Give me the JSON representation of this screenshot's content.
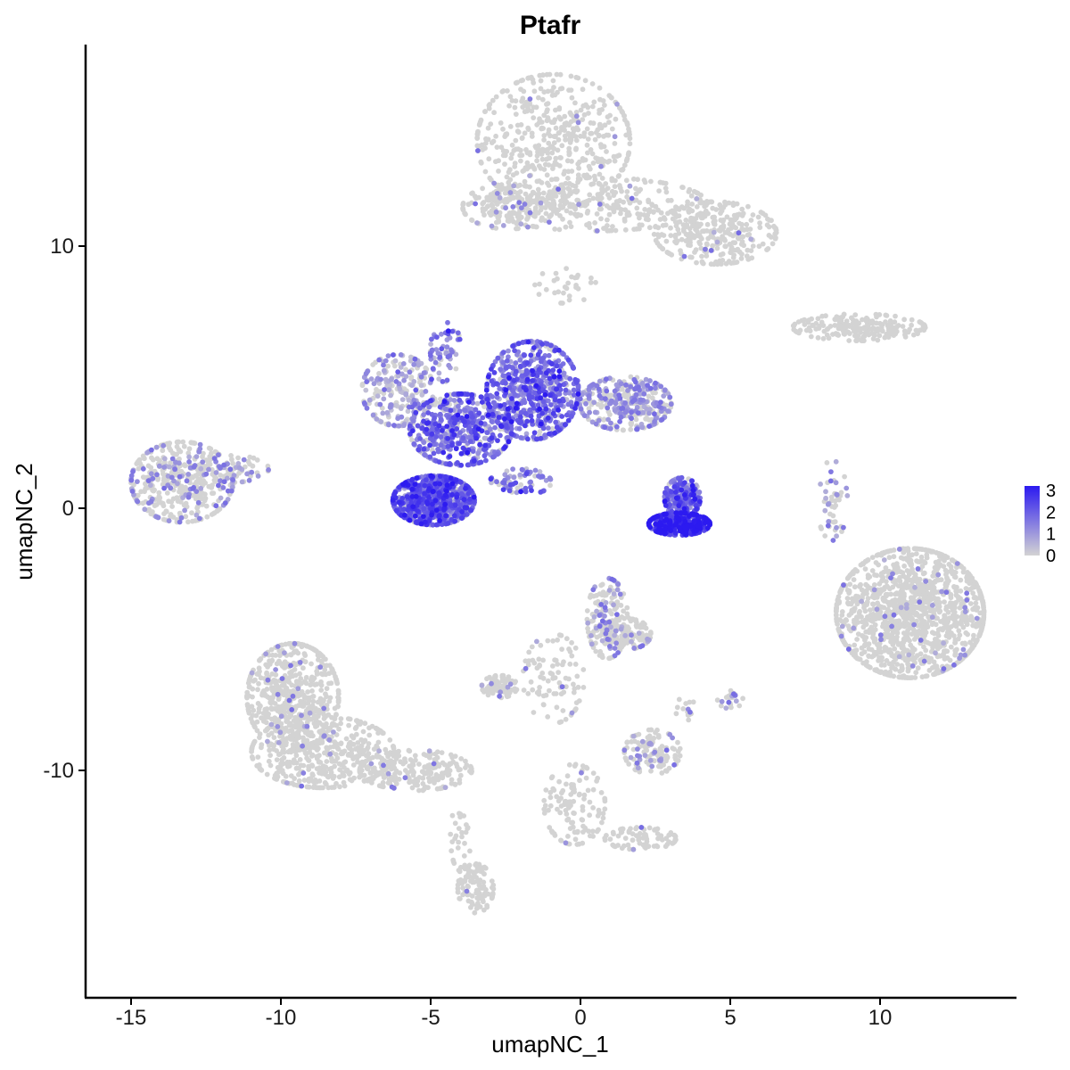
{
  "chart_data": {
    "type": "scatter",
    "title": "Ptafr",
    "xlabel": "umapNC_1",
    "ylabel": "umapNC_2",
    "xlim": [
      -16.5,
      14.5
    ],
    "ylim": [
      -18.5,
      17.5
    ],
    "x_ticks": [
      -15,
      -10,
      -5,
      0,
      5,
      10
    ],
    "y_ticks": [
      -10,
      0,
      10
    ],
    "x_tick_labels": [
      "-15",
      "-10",
      "-5",
      "0",
      "5",
      "10"
    ],
    "y_tick_labels": [
      "-10",
      "0",
      "10"
    ],
    "grid": false,
    "color_scale": {
      "low": "#d3d3d3",
      "high": "#2c1af0",
      "min": 0,
      "max": 3.2
    },
    "legend": {
      "position": "right",
      "labels": [
        "3",
        "2",
        "1",
        "0"
      ],
      "values": [
        3,
        2,
        1,
        0
      ]
    },
    "clusters": [
      {
        "center": [
          -0.9,
          14.0
        ],
        "spread": [
          1.5,
          1.5
        ],
        "n": 500,
        "expr": 0.02
      },
      {
        "center": [
          0.5,
          11.6
        ],
        "spread": [
          2.2,
          0.6
        ],
        "n": 300,
        "expr": 0.02
      },
      {
        "center": [
          -2.4,
          11.5
        ],
        "spread": [
          0.9,
          0.5
        ],
        "n": 150,
        "expr": 0.05
      },
      {
        "center": [
          4.5,
          10.5
        ],
        "spread": [
          1.2,
          0.7
        ],
        "n": 300,
        "expr": 0.03
      },
      {
        "center": [
          -0.5,
          8.5
        ],
        "spread": [
          0.6,
          0.4
        ],
        "n": 30,
        "expr": 0.0
      },
      {
        "center": [
          9.3,
          6.9
        ],
        "spread": [
          1.3,
          0.3
        ],
        "n": 200,
        "expr": 0.0
      },
      {
        "center": [
          -13.3,
          1.0
        ],
        "spread": [
          1.0,
          0.9
        ],
        "n": 450,
        "expr": 0.25
      },
      {
        "center": [
          -11.6,
          1.5
        ],
        "spread": [
          0.7,
          0.3
        ],
        "n": 60,
        "expr": 0.3
      },
      {
        "center": [
          -6.1,
          4.5
        ],
        "spread": [
          0.7,
          0.8
        ],
        "n": 220,
        "expr": 0.6
      },
      {
        "center": [
          -4.9,
          0.3
        ],
        "spread": [
          0.8,
          0.55
        ],
        "n": 750,
        "expr": 1.9
      },
      {
        "center": [
          -4.0,
          3.0
        ],
        "spread": [
          1.0,
          0.8
        ],
        "n": 550,
        "expr": 1.6
      },
      {
        "center": [
          -1.6,
          4.5
        ],
        "spread": [
          0.9,
          1.1
        ],
        "n": 650,
        "expr": 1.7
      },
      {
        "center": [
          1.5,
          4.0
        ],
        "spread": [
          0.9,
          0.6
        ],
        "n": 350,
        "expr": 0.5
      },
      {
        "center": [
          -4.5,
          6.0
        ],
        "spread": [
          0.3,
          0.7
        ],
        "n": 60,
        "expr": 1.3
      },
      {
        "center": [
          -2.0,
          1.0
        ],
        "spread": [
          0.6,
          0.3
        ],
        "n": 70,
        "expr": 1.5
      },
      {
        "center": [
          3.3,
          -0.6
        ],
        "spread": [
          0.6,
          0.25
        ],
        "n": 380,
        "expr": 2.8
      },
      {
        "center": [
          3.4,
          0.4
        ],
        "spread": [
          0.35,
          0.45
        ],
        "n": 200,
        "expr": 1.9
      },
      {
        "center": [
          8.4,
          0.3
        ],
        "spread": [
          0.3,
          0.9
        ],
        "n": 50,
        "expr": 0.4
      },
      {
        "center": [
          11.0,
          -4.0
        ],
        "spread": [
          1.45,
          1.45
        ],
        "n": 1300,
        "expr": 0.03
      },
      {
        "center": [
          0.9,
          -4.2
        ],
        "spread": [
          0.4,
          0.9
        ],
        "n": 160,
        "expr": 0.25
      },
      {
        "center": [
          1.5,
          -4.8
        ],
        "spread": [
          0.5,
          0.35
        ],
        "n": 120,
        "expr": 0.2
      },
      {
        "center": [
          -0.9,
          -6.5
        ],
        "spread": [
          0.6,
          1.0
        ],
        "n": 90,
        "expr": 0.1
      },
      {
        "center": [
          -2.7,
          -6.8
        ],
        "spread": [
          0.35,
          0.25
        ],
        "n": 80,
        "expr": 0.1
      },
      {
        "center": [
          2.4,
          -9.3
        ],
        "spread": [
          0.55,
          0.5
        ],
        "n": 120,
        "expr": 0.2
      },
      {
        "center": [
          3.5,
          -7.7
        ],
        "spread": [
          0.2,
          0.3
        ],
        "n": 15,
        "expr": 0.1
      },
      {
        "center": [
          5.0,
          -7.3
        ],
        "spread": [
          0.25,
          0.2
        ],
        "n": 25,
        "expr": 0.3
      },
      {
        "center": [
          -9.6,
          -7.2
        ],
        "spread": [
          0.9,
          1.2
        ],
        "n": 550,
        "expr": 0.04
      },
      {
        "center": [
          -8.6,
          -9.3
        ],
        "spread": [
          1.4,
          0.8
        ],
        "n": 450,
        "expr": 0.03
      },
      {
        "center": [
          -5.5,
          -10.0
        ],
        "spread": [
          1.1,
          0.45
        ],
        "n": 220,
        "expr": 0.02
      },
      {
        "center": [
          -3.5,
          -14.5
        ],
        "spread": [
          0.35,
          0.55
        ],
        "n": 100,
        "expr": 0.02
      },
      {
        "center": [
          -4.0,
          -12.5
        ],
        "spread": [
          0.2,
          0.8
        ],
        "n": 30,
        "expr": 0.0
      },
      {
        "center": [
          -0.2,
          -11.3
        ],
        "spread": [
          0.6,
          0.9
        ],
        "n": 120,
        "expr": 0.02
      },
      {
        "center": [
          2.0,
          -12.6
        ],
        "spread": [
          0.7,
          0.25
        ],
        "n": 80,
        "expr": 0.02
      }
    ]
  }
}
